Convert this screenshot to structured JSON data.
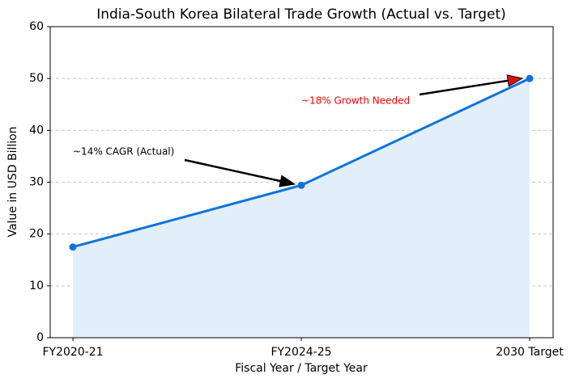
{
  "chart_data": {
    "type": "line",
    "title": "India-South Korea Bilateral Trade Growth (Actual vs. Target)",
    "x_label": "Fiscal Year / Target Year",
    "y_label": "Value in USD Billion",
    "categories": [
      "FY2020-21",
      "FY2024-25",
      "2030 Target"
    ],
    "values": [
      17.5,
      29.4,
      50
    ],
    "color": "#0a74da",
    "area_color": "#e3eefb",
    "ylim": [
      0,
      60
    ],
    "yticks": [
      0,
      10,
      20,
      30,
      40,
      50,
      60
    ],
    "grid": true,
    "annotations": [
      {
        "text": "~14% CAGR (Actual)",
        "color": "#000000"
      },
      {
        "text": "~18% Growth Needed",
        "color": "#ff0000"
      }
    ]
  }
}
